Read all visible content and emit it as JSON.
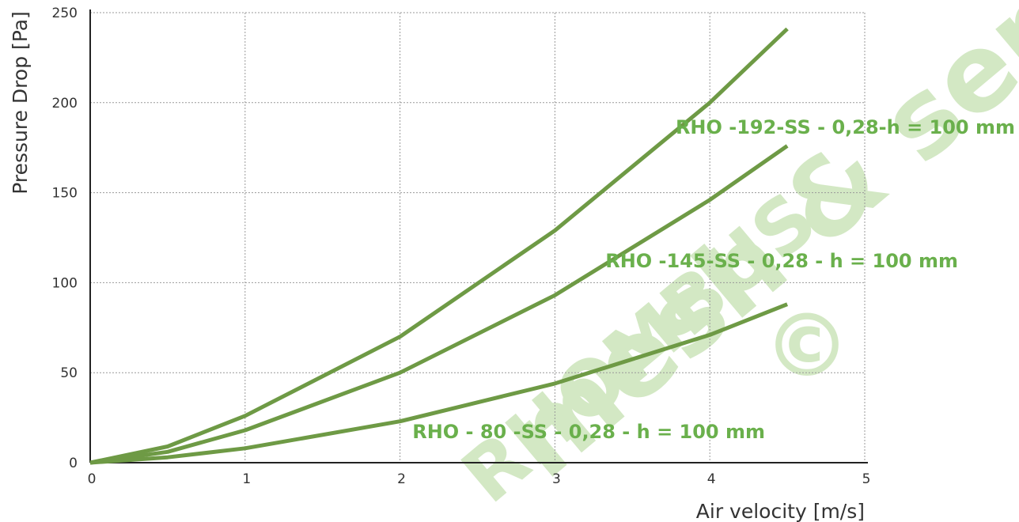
{
  "chart_data": {
    "type": "line",
    "title": "",
    "xlabel": "Air velocity [m/s]",
    "ylabel": "Pressure Drop [Pa]",
    "xlim": [
      0,
      5
    ],
    "ylim": [
      0,
      250
    ],
    "x_ticks": [
      "0",
      "1",
      "2",
      "3",
      "4",
      "5"
    ],
    "y_ticks": [
      "0",
      "50",
      "100",
      "150",
      "200",
      "250"
    ],
    "grid": true,
    "series": [
      {
        "name": "RHO -192-SS - 0,28-h = 100 mm",
        "x": [
          0,
          0.5,
          1,
          2,
          3,
          4,
          4.5
        ],
        "y": [
          0,
          9,
          26,
          70,
          129,
          200,
          241
        ]
      },
      {
        "name": "RHO -145-SS - 0,28 - h = 100 mm",
        "x": [
          0,
          0.5,
          1,
          2,
          3,
          4,
          4.5
        ],
        "y": [
          0,
          6,
          18,
          50,
          93,
          146,
          176
        ]
      },
      {
        "name": "RHO - 80 -SS - 0,28 - h = 100 mm",
        "x": [
          0,
          0.5,
          1,
          2,
          3,
          4,
          4.5
        ],
        "y": [
          0,
          3,
          8,
          23,
          44,
          71,
          88
        ]
      }
    ],
    "colors": {
      "line": "#6e9a45",
      "label": "#6ab04c",
      "grid": "#999999",
      "axis": "#222222"
    }
  },
  "watermark": {
    "line1": "mesh & separation",
    "line2": "RHOMBUS",
    "symbol": "©"
  }
}
